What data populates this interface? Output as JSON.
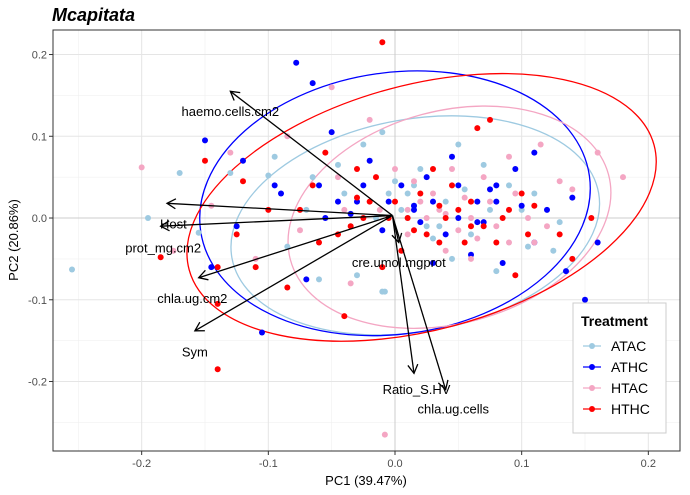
{
  "chart_data": {
    "type": "scatter",
    "title": "Mcapitata",
    "xlabel": "PC1 (39.47%)",
    "ylabel": "PC2 (20.86%)",
    "xlim": [
      -0.27,
      0.225
    ],
    "ylim": [
      -0.285,
      0.23
    ],
    "x_ticks": [
      -0.2,
      -0.1,
      0.0,
      0.1,
      0.2
    ],
    "x_tick_labels": [
      "-0.2",
      "-0.1",
      "0.0",
      "0.1",
      "0.2"
    ],
    "y_ticks": [
      -0.2,
      -0.1,
      0.0,
      0.1,
      0.2
    ],
    "y_tick_labels": [
      "-0.2",
      "-0.1",
      "0.0",
      "0.1",
      "0.2"
    ],
    "grid": true,
    "legend_position": "right-bottom",
    "legend_title": "Treatment",
    "series": [
      {
        "name": "ATAC",
        "color": "#9ecae1",
        "points": [
          [
            -0.255,
            -0.063
          ],
          [
            -0.195,
            0.0
          ],
          [
            -0.17,
            0.055
          ],
          [
            -0.155,
            -0.018
          ],
          [
            -0.13,
            0.055
          ],
          [
            -0.1,
            0.052
          ],
          [
            -0.095,
            0.075
          ],
          [
            -0.085,
            -0.035
          ],
          [
            -0.07,
            0.01
          ],
          [
            -0.065,
            0.05
          ],
          [
            -0.06,
            -0.075
          ],
          [
            -0.045,
            0.065
          ],
          [
            -0.04,
            0.03
          ],
          [
            -0.03,
            -0.07
          ],
          [
            -0.025,
            0.09
          ],
          [
            -0.015,
            0.0
          ],
          [
            -0.01,
            0.105
          ],
          [
            -0.008,
            -0.09
          ],
          [
            0.0,
            0.045
          ],
          [
            0.005,
            0.01
          ],
          [
            0.01,
            0.03
          ],
          [
            0.015,
            0.04
          ],
          [
            0.02,
            0.06
          ],
          [
            0.025,
            -0.01
          ],
          [
            0.03,
            -0.025
          ],
          [
            0.04,
            0.02
          ],
          [
            0.045,
            -0.05
          ],
          [
            0.05,
            0.09
          ],
          [
            0.055,
            0.035
          ],
          [
            0.06,
            -0.02
          ],
          [
            0.07,
            0.065
          ],
          [
            0.075,
            0.01
          ],
          [
            0.08,
            -0.065
          ],
          [
            0.09,
            0.04
          ],
          [
            0.1,
            0.01
          ],
          [
            0.105,
            -0.035
          ],
          [
            0.11,
            0.03
          ],
          [
            0.125,
            -0.04
          ],
          [
            0.13,
            -0.005
          ],
          [
            0.015,
            0.015
          ],
          [
            0.035,
            -0.01
          ],
          [
            0.01,
            0.0
          ],
          [
            -0.005,
            0.03
          ],
          [
            -0.01,
            -0.09
          ]
        ]
      },
      {
        "name": "ATHC",
        "color": "#0000ff",
        "points": [
          [
            -0.15,
            0.095
          ],
          [
            -0.145,
            -0.06
          ],
          [
            -0.125,
            -0.01
          ],
          [
            -0.12,
            0.07
          ],
          [
            -0.105,
            -0.14
          ],
          [
            -0.095,
            0.04
          ],
          [
            -0.09,
            0.03
          ],
          [
            -0.078,
            0.19
          ],
          [
            -0.07,
            -0.075
          ],
          [
            -0.06,
            0.04
          ],
          [
            -0.055,
            0.0
          ],
          [
            -0.05,
            0.105
          ],
          [
            -0.045,
            0.02
          ],
          [
            -0.035,
            0.005
          ],
          [
            -0.03,
            0.02
          ],
          [
            -0.025,
            0.04
          ],
          [
            -0.02,
            0.07
          ],
          [
            -0.01,
            -0.015
          ],
          [
            -0.005,
            0.02
          ],
          [
            0.005,
            0.04
          ],
          [
            0.015,
            0.01
          ],
          [
            0.02,
            -0.005
          ],
          [
            0.025,
            0.05
          ],
          [
            0.03,
            0.02
          ],
          [
            0.04,
            -0.02
          ],
          [
            0.045,
            0.075
          ],
          [
            0.05,
            0.0
          ],
          [
            0.06,
            -0.045
          ],
          [
            0.065,
            0.02
          ],
          [
            0.07,
            -0.005
          ],
          [
            0.075,
            0.035
          ],
          [
            0.08,
            0.04
          ],
          [
            0.085,
            -0.055
          ],
          [
            0.095,
            0.06
          ],
          [
            0.1,
            0.015
          ],
          [
            0.11,
            -0.03
          ],
          [
            0.12,
            0.01
          ],
          [
            0.135,
            -0.065
          ],
          [
            0.14,
            0.025
          ],
          [
            0.15,
            -0.1
          ],
          [
            0.16,
            -0.03
          ],
          [
            0.11,
            0.08
          ],
          [
            -0.065,
            0.165
          ],
          [
            0.015,
            0.015
          ],
          [
            0.03,
            -0.055
          ],
          [
            0.05,
            0.04
          ],
          [
            0.065,
            -0.005
          ],
          [
            0.08,
            0.02
          ]
        ]
      },
      {
        "name": "HTAC",
        "color": "#f4a6c3",
        "points": [
          [
            -0.2,
            0.062
          ],
          [
            -0.175,
            -0.04
          ],
          [
            -0.145,
            0.015
          ],
          [
            -0.13,
            0.08
          ],
          [
            -0.11,
            -0.05
          ],
          [
            -0.085,
            0.1
          ],
          [
            -0.075,
            -0.015
          ],
          [
            -0.05,
            0.16
          ],
          [
            -0.045,
            0.05
          ],
          [
            -0.035,
            -0.08
          ],
          [
            -0.02,
            0.12
          ],
          [
            -0.012,
            0.01
          ],
          [
            -0.008,
            -0.265
          ],
          [
            0.0,
            0.06
          ],
          [
            0.01,
            -0.02
          ],
          [
            0.015,
            0.045
          ],
          [
            0.025,
            0.0
          ],
          [
            0.03,
            0.03
          ],
          [
            0.035,
            0.01
          ],
          [
            0.04,
            -0.04
          ],
          [
            0.045,
            0.06
          ],
          [
            0.05,
            -0.015
          ],
          [
            0.055,
            0.025
          ],
          [
            0.06,
            0.0
          ],
          [
            0.065,
            -0.025
          ],
          [
            0.07,
            0.05
          ],
          [
            0.075,
            0.02
          ],
          [
            0.08,
            -0.01
          ],
          [
            0.09,
            -0.03
          ],
          [
            0.095,
            0.03
          ],
          [
            0.105,
            0.0
          ],
          [
            0.115,
            0.09
          ],
          [
            0.12,
            -0.01
          ],
          [
            0.13,
            0.045
          ],
          [
            0.14,
            0.035
          ],
          [
            0.16,
            0.08
          ],
          [
            0.175,
            -0.12
          ],
          [
            0.18,
            0.05
          ],
          [
            0.04,
            0.005
          ],
          [
            0.02,
            0.02
          ],
          [
            0.06,
            -0.05
          ],
          [
            -0.04,
            0.01
          ],
          [
            0.01,
            0.01
          ],
          [
            0.09,
            0.075
          ],
          [
            0.11,
            -0.03
          ]
        ]
      },
      {
        "name": "HTHC",
        "color": "#ff0000",
        "points": [
          [
            -0.185,
            -0.048
          ],
          [
            -0.15,
            0.07
          ],
          [
            -0.14,
            -0.105
          ],
          [
            -0.14,
            -0.06
          ],
          [
            -0.125,
            -0.02
          ],
          [
            -0.12,
            0.045
          ],
          [
            -0.11,
            -0.06
          ],
          [
            -0.1,
            0.01
          ],
          [
            -0.085,
            -0.085
          ],
          [
            -0.075,
            0.01
          ],
          [
            -0.065,
            0.04
          ],
          [
            -0.06,
            -0.03
          ],
          [
            -0.055,
            0.08
          ],
          [
            -0.045,
            -0.02
          ],
          [
            -0.04,
            -0.12
          ],
          [
            -0.035,
            -0.01
          ],
          [
            -0.03,
            0.06
          ],
          [
            -0.025,
            0.0
          ],
          [
            -0.02,
            0.02
          ],
          [
            -0.015,
            0.05
          ],
          [
            -0.01,
            -0.06
          ],
          [
            -0.005,
            0.0
          ],
          [
            0.0,
            0.02
          ],
          [
            0.005,
            -0.04
          ],
          [
            0.01,
            0.0
          ],
          [
            0.02,
            0.03
          ],
          [
            0.025,
            -0.02
          ],
          [
            0.03,
            0.06
          ],
          [
            0.035,
            -0.03
          ],
          [
            0.04,
            0.0
          ],
          [
            0.045,
            0.04
          ],
          [
            0.05,
            0.01
          ],
          [
            0.055,
            -0.03
          ],
          [
            0.06,
            0.02
          ],
          [
            0.065,
            0.11
          ],
          [
            0.07,
            -0.01
          ],
          [
            0.075,
            0.12
          ],
          [
            0.08,
            -0.03
          ],
          [
            0.085,
            0.0
          ],
          [
            0.09,
            0.01
          ],
          [
            0.095,
            -0.07
          ],
          [
            0.1,
            0.03
          ],
          [
            0.105,
            -0.02
          ],
          [
            0.11,
            0.015
          ],
          [
            0.13,
            -0.02
          ],
          [
            0.14,
            -0.05
          ],
          [
            0.155,
            0.0
          ],
          [
            -0.01,
            0.215
          ],
          [
            -0.14,
            -0.185
          ],
          [
            -0.03,
            0.025
          ],
          [
            0.015,
            -0.015
          ],
          [
            0.035,
            0.015
          ],
          [
            0.06,
            -0.01
          ]
        ]
      }
    ],
    "ellipses": [
      {
        "series": "ATAC",
        "color": "#9ecae1",
        "cx": 0.016,
        "cy": -0.009,
        "rx": 0.147,
        "ry": 0.13,
        "angle": -10
      },
      {
        "series": "ATHC",
        "color": "#0000ff",
        "cx": 0.0,
        "cy": 0.018,
        "rx": 0.155,
        "ry": 0.16,
        "angle": -8
      },
      {
        "series": "HTAC",
        "color": "#f4a6c3",
        "cx": 0.043,
        "cy": 0.001,
        "rx": 0.13,
        "ry": 0.13,
        "angle": -15
      },
      {
        "series": "HTHC",
        "color": "#ff0000",
        "cx": 0.021,
        "cy": 0.013,
        "rx": 0.19,
        "ry": 0.15,
        "angle": -15
      }
    ],
    "loadings_origin": [
      -0.002,
      0.003
    ],
    "loadings": [
      {
        "label": "haemo.cells.cm2",
        "x": -0.13,
        "y": 0.155,
        "lx": -0.13,
        "ly": 0.131
      },
      {
        "label": "Host",
        "x": -0.18,
        "y": 0.018,
        "lx": -0.175,
        "ly": -0.007
      },
      {
        "label": "prot_mg.cm2",
        "x": -0.185,
        "y": -0.01,
        "lx": -0.183,
        "ly": -0.036
      },
      {
        "label": "chla.ug.cm2",
        "x": -0.155,
        "y": -0.073,
        "lx": -0.16,
        "ly": -0.098
      },
      {
        "label": "Sym",
        "x": -0.158,
        "y": -0.138,
        "lx": -0.158,
        "ly": -0.163
      },
      {
        "label": "cre.umol.mgprot",
        "x": 0.003,
        "y": -0.03,
        "lx": 0.003,
        "ly": -0.054
      },
      {
        "label": "Ratio_S.HV",
        "x": 0.015,
        "y": -0.19,
        "lx": 0.017,
        "ly": -0.209
      },
      {
        "label": "chla.ug.cells",
        "x": 0.04,
        "y": -0.21,
        "lx": 0.046,
        "ly": -0.233
      }
    ]
  },
  "legend": {
    "title": "Treatment",
    "items": [
      {
        "label": "ATAC",
        "color": "#9ecae1"
      },
      {
        "label": "ATHC",
        "color": "#0000ff"
      },
      {
        "label": "HTAC",
        "color": "#f4a6c3"
      },
      {
        "label": "HTHC",
        "color": "#ff0000"
      }
    ]
  }
}
